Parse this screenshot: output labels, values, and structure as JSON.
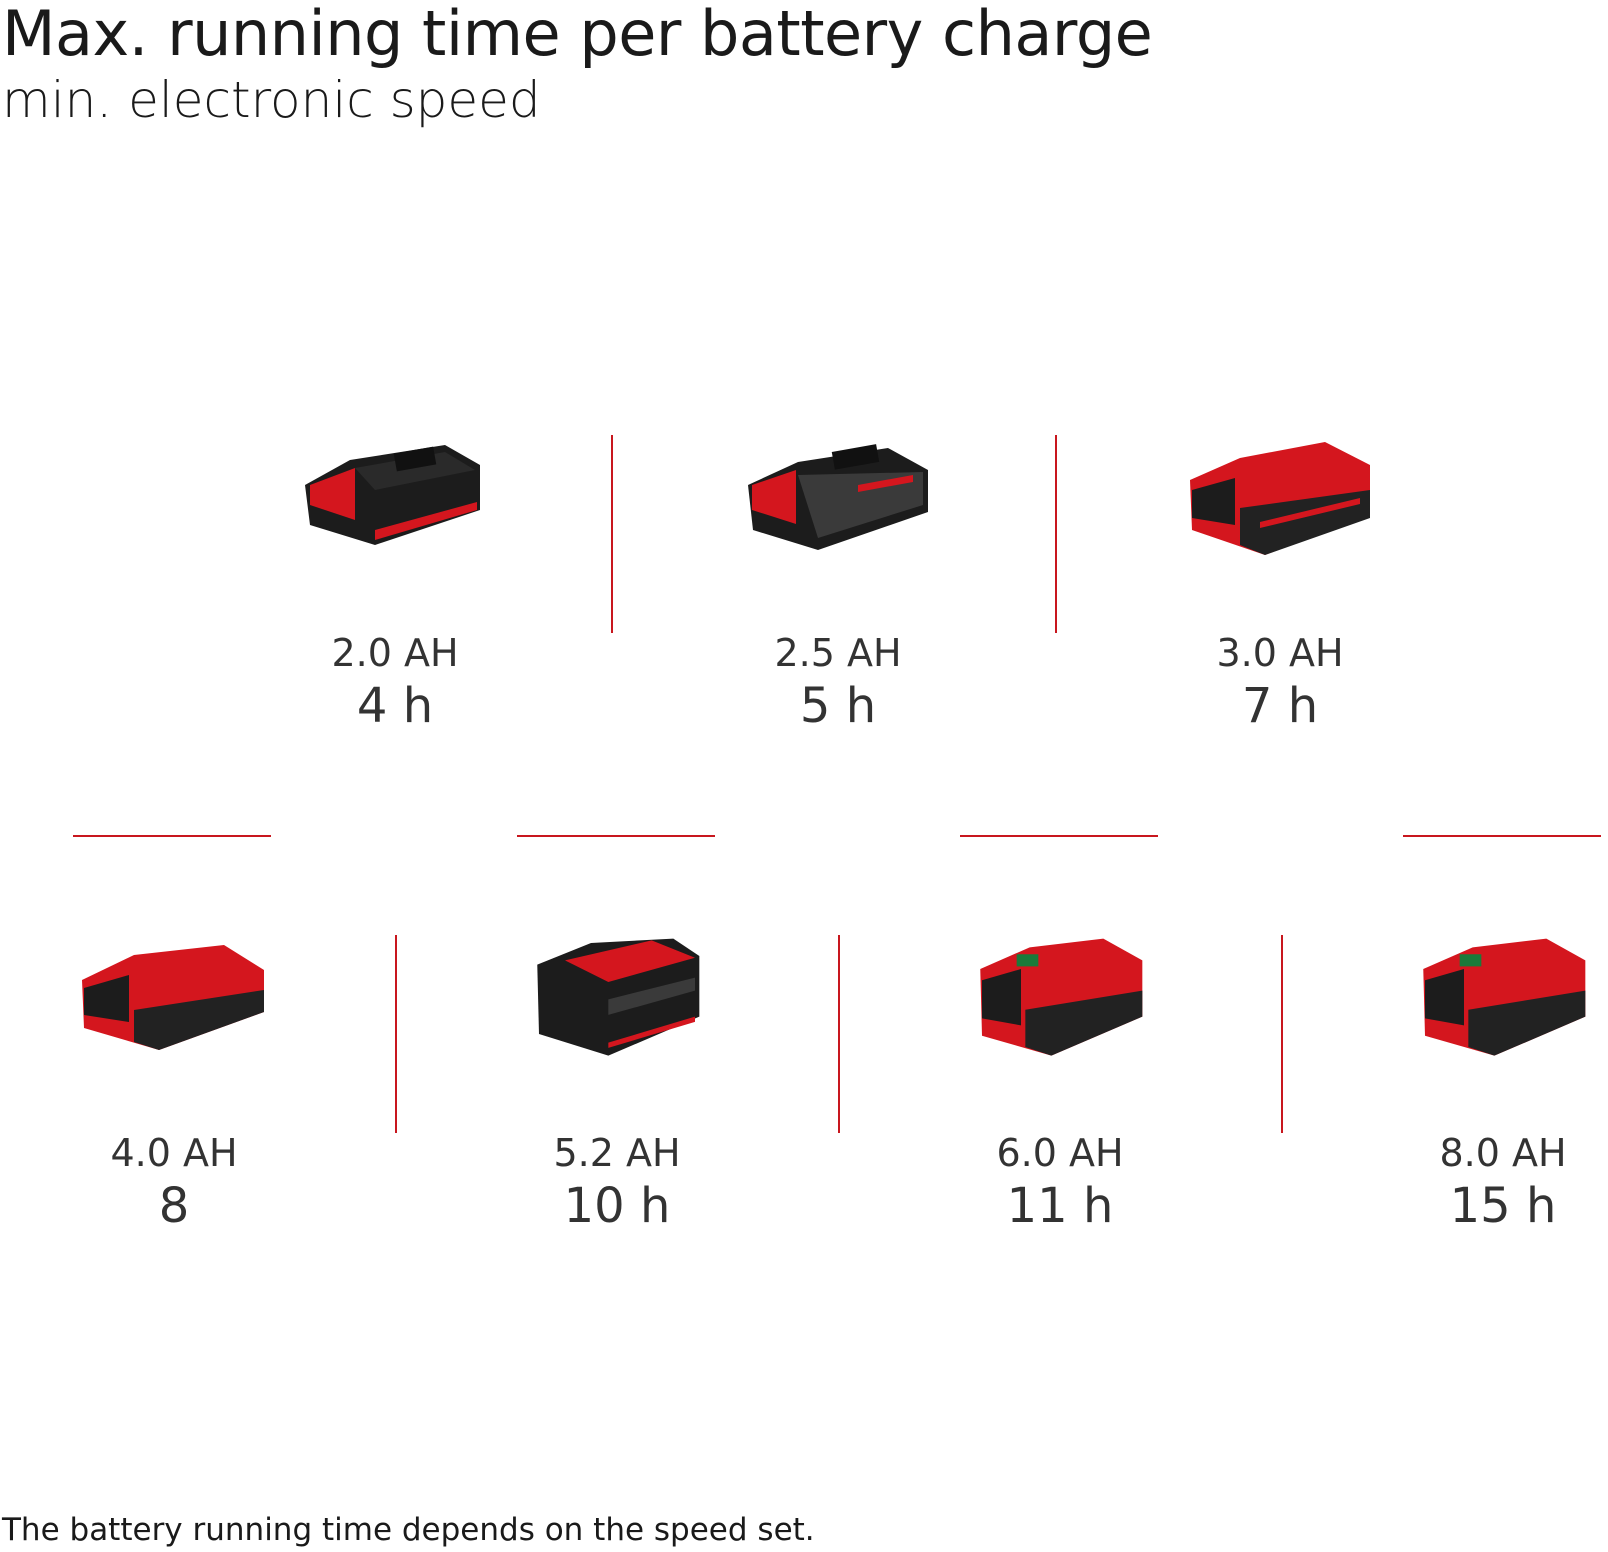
{
  "title": "Max. running time per battery charge",
  "subtitle": "min. electronic speed",
  "footnote": "The battery running time depends on the speed set.",
  "accent_color": "#c8171e",
  "batteries": [
    {
      "capacity": "2.0 AH",
      "time": "4 h",
      "icon": "battery-2ah-icon"
    },
    {
      "capacity": "2.5 AH",
      "time": "5 h",
      "icon": "battery-2-5ah-icon"
    },
    {
      "capacity": "3.0 AH",
      "time": "7 h",
      "icon": "battery-3ah-icon"
    },
    {
      "capacity": "4.0 AH",
      "time": "8",
      "icon": "battery-4ah-icon"
    },
    {
      "capacity": "5.2 AH",
      "time": "10 h",
      "icon": "battery-5-2ah-icon"
    },
    {
      "capacity": "6.0 AH",
      "time": "11 h",
      "icon": "battery-6ah-icon"
    },
    {
      "capacity": "8.0 AH",
      "time": "15 h",
      "icon": "battery-8ah-icon"
    }
  ]
}
